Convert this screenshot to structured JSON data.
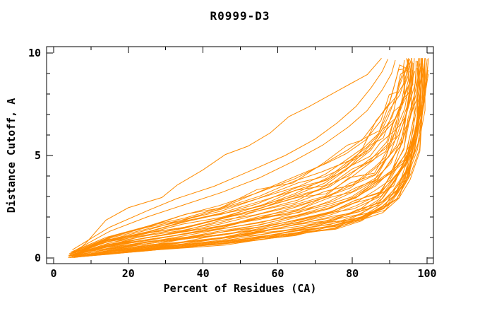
{
  "chart_data": {
    "type": "line",
    "title": "R0999-D3",
    "xlabel": "Percent of Residues (CA)",
    "ylabel": "Distance Cutoff, A",
    "xlim": [
      0,
      100
    ],
    "ylim": [
      0,
      10
    ],
    "x_ticks_major": [
      0,
      20,
      40,
      60,
      80,
      100
    ],
    "x_ticks_minor": [
      10,
      30,
      50,
      70,
      90
    ],
    "y_ticks_major": [
      0,
      5,
      10
    ],
    "y_ticks_minor": [
      1,
      2,
      3,
      4,
      6,
      7,
      8,
      9
    ],
    "grid": false,
    "legend": "none",
    "curve_color": "#FF8C00",
    "axis_color": "#000000",
    "background_color": "#FFFFFF",
    "n_bundle_curves": 52,
    "outlier_curve": [
      [
        4.7,
        0.05
      ],
      [
        9,
        0.8
      ],
      [
        14,
        1.85
      ],
      [
        20,
        2.45
      ],
      [
        29,
        2.95
      ],
      [
        33,
        3.55
      ],
      [
        40,
        4.3
      ],
      [
        46,
        5.05
      ],
      [
        52,
        5.45
      ],
      [
        58,
        6.1
      ],
      [
        63,
        6.9
      ],
      [
        68,
        7.35
      ],
      [
        74,
        7.95
      ],
      [
        80,
        8.55
      ],
      [
        84,
        8.95
      ],
      [
        87.8,
        9.75
      ]
    ],
    "mid_curves": [
      [
        [
          5,
          0.3
        ],
        [
          15,
          1.3
        ],
        [
          25,
          2.0
        ],
        [
          35,
          2.6
        ],
        [
          45,
          3.2
        ],
        [
          55,
          3.9
        ],
        [
          64,
          4.7
        ],
        [
          72,
          5.5
        ],
        [
          79,
          6.4
        ],
        [
          84,
          7.2
        ],
        [
          88,
          8.2
        ],
        [
          90.5,
          9.0
        ],
        [
          91.5,
          9.65
        ]
      ],
      [
        [
          5,
          0.4
        ],
        [
          15,
          1.5
        ],
        [
          25,
          2.3
        ],
        [
          33,
          2.9
        ],
        [
          43,
          3.5
        ],
        [
          52,
          4.2
        ],
        [
          62,
          5.0
        ],
        [
          70,
          5.8
        ],
        [
          76,
          6.6
        ],
        [
          81,
          7.4
        ],
        [
          85,
          8.3
        ],
        [
          88,
          9.1
        ],
        [
          89.5,
          9.7
        ]
      ]
    ],
    "envelope_low": [
      [
        4.7,
        0.02
      ],
      [
        15,
        0.2
      ],
      [
        25,
        0.35
      ],
      [
        35,
        0.5
      ],
      [
        45,
        0.68
      ],
      [
        55,
        0.9
      ],
      [
        65,
        1.15
      ],
      [
        75,
        1.45
      ],
      [
        82,
        1.8
      ],
      [
        88,
        2.3
      ],
      [
        92,
        3.0
      ],
      [
        95,
        3.9
      ],
      [
        97.5,
        5.5
      ],
      [
        99.0,
        7.5
      ],
      [
        99.6,
        9.55
      ]
    ],
    "envelope_high": [
      [
        5.2,
        0.3
      ],
      [
        15,
        1.05
      ],
      [
        25,
        1.6
      ],
      [
        35,
        2.1
      ],
      [
        45,
        2.6
      ],
      [
        55,
        3.2
      ],
      [
        65,
        3.95
      ],
      [
        72,
        4.6
      ],
      [
        78,
        5.3
      ],
      [
        83,
        6.1
      ],
      [
        86.5,
        6.9
      ],
      [
        89.5,
        7.8
      ],
      [
        91.5,
        8.6
      ],
      [
        92.8,
        9.3
      ],
      [
        93.5,
        9.7
      ]
    ]
  }
}
